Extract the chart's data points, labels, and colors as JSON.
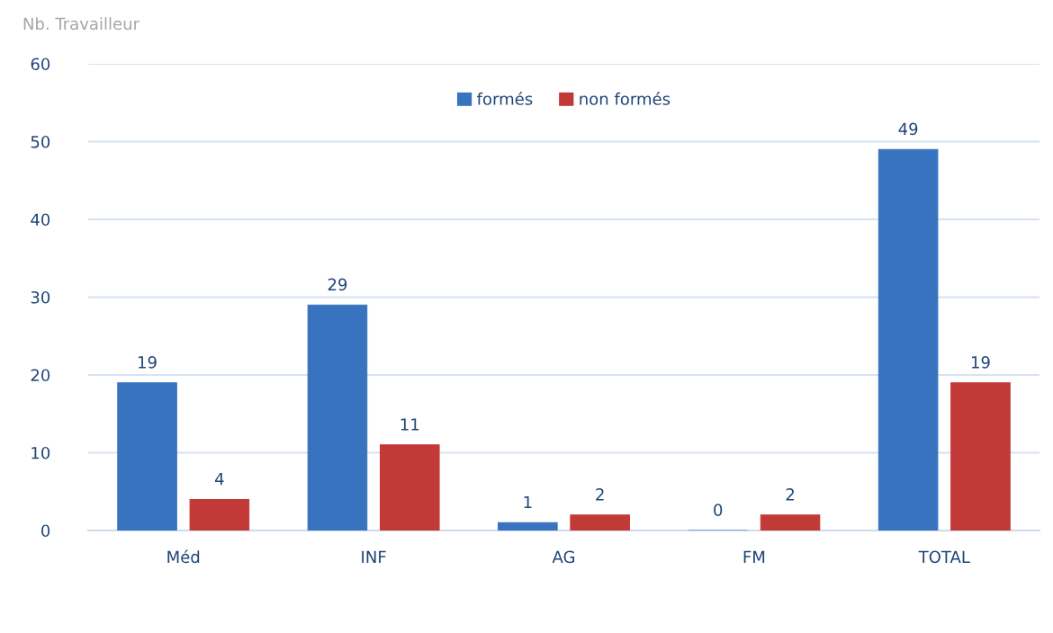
{
  "chart_data": {
    "type": "bar",
    "ylabel": "Nb. Travailleur",
    "categories": [
      "Méd",
      "INF",
      "AG",
      "FM",
      "TOTAL"
    ],
    "series": [
      {
        "name": "formés",
        "color": "#3873c0",
        "values": [
          19,
          29,
          1,
          0,
          49
        ]
      },
      {
        "name": "non formés",
        "color": "#c23a38",
        "values": [
          4,
          11,
          2,
          2,
          19
        ]
      }
    ],
    "ylim": [
      0,
      60
    ],
    "yticks": [
      0,
      10,
      20,
      30,
      40,
      50,
      60
    ],
    "grid": "y",
    "legend": "top",
    "data_labels": true
  }
}
